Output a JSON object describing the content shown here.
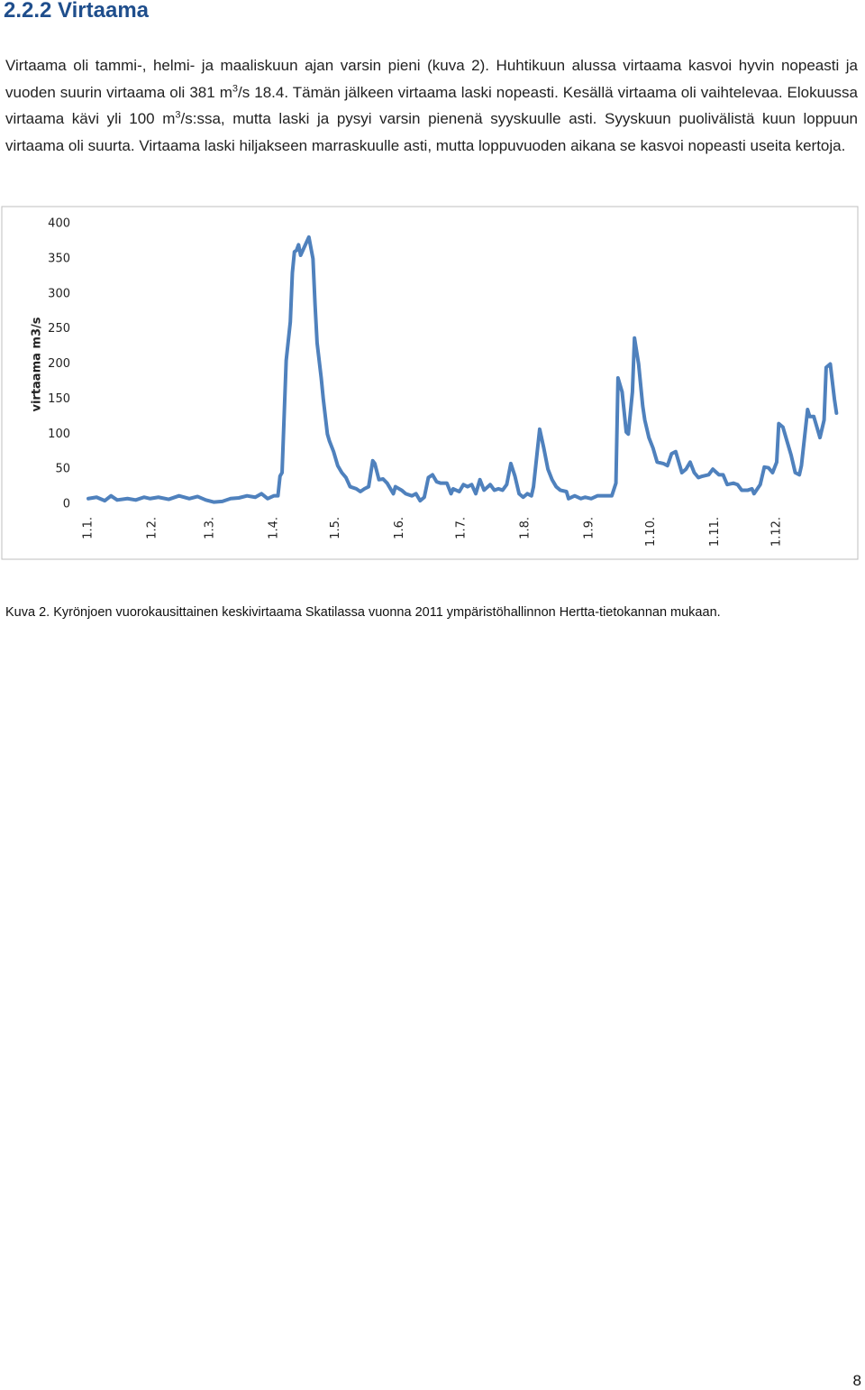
{
  "heading": "2.2.2 Virtaama",
  "paragraph": [
    "Virtaama oli tammi-, helmi- ja maaliskuun ajan varsin pieni (kuva 2). Huhtikuun alussa virtaama kasvoi hyvin nopeasti ja vuoden suurin virtaama oli 381 m",
    "3",
    "/s 18.4. Tämän jälkeen virtaama laski nopeasti. Kesällä virtaama oli vaihtelevaa. Elokuussa virtaama kävi yli 100 m",
    "3",
    "/s:ssa, mutta laski ja pysyi varsin pienenä syyskuulle asti. Syyskuun puolivälistä kuun loppuun virtaama oli suurta. Virtaama laski hiljakseen marraskuulle asti, mutta loppuvuoden aikana se kasvoi nopeasti useita kertoja."
  ],
  "chart_data": {
    "type": "line",
    "y_label": "virtaama m3/s",
    "x": [
      1,
      5,
      9,
      12,
      15,
      20,
      24,
      28,
      31,
      35,
      40,
      45,
      50,
      54,
      58,
      62,
      66,
      70,
      74,
      78,
      82,
      85,
      88,
      91,
      93,
      94,
      95,
      97,
      99,
      100,
      101,
      102,
      103,
      104,
      108,
      110,
      111,
      112,
      114,
      115,
      117,
      118,
      120,
      122,
      123,
      124,
      126,
      128,
      131,
      133,
      135,
      137,
      139,
      140,
      142,
      144,
      146,
      149,
      150,
      153,
      155,
      158,
      160,
      162,
      164,
      166,
      168,
      170,
      172,
      175,
      177,
      178,
      181,
      183,
      185,
      187,
      189,
      191,
      193,
      196,
      198,
      200,
      202,
      204,
      206,
      208,
      210,
      212,
      214,
      216,
      217,
      219,
      220,
      222,
      224,
      226,
      228,
      230,
      233,
      234,
      237,
      240,
      242,
      245,
      248,
      251,
      253,
      255,
      257,
      258,
      260,
      262,
      263,
      265,
      266,
      268,
      270,
      271,
      273,
      275,
      277,
      280,
      282,
      284,
      286,
      289,
      291,
      293,
      295,
      297,
      299,
      302,
      304,
      307,
      309,
      311,
      314,
      316,
      318,
      321,
      323,
      324,
      327,
      329,
      331,
      333,
      335,
      336,
      338,
      340,
      342,
      344,
      346,
      347,
      350,
      351,
      353,
      356,
      358,
      359,
      361,
      363,
      364
    ],
    "values": [
      8,
      10,
      5,
      12,
      6,
      8,
      6,
      10,
      8,
      10,
      7,
      12,
      8,
      11,
      6,
      3,
      4,
      8,
      9,
      12,
      10,
      15,
      8,
      12,
      12,
      40,
      45,
      205,
      260,
      330,
      360,
      362,
      370,
      355,
      381,
      350,
      285,
      230,
      180,
      150,
      100,
      90,
      75,
      55,
      50,
      45,
      38,
      25,
      22,
      18,
      22,
      25,
      62,
      58,
      35,
      36,
      30,
      15,
      25,
      20,
      15,
      12,
      15,
      5,
      10,
      38,
      42,
      32,
      30,
      30,
      15,
      22,
      18,
      28,
      25,
      28,
      15,
      35,
      20,
      28,
      20,
      22,
      20,
      28,
      58,
      40,
      15,
      10,
      15,
      12,
      25,
      80,
      107,
      80,
      50,
      35,
      25,
      20,
      18,
      8,
      12,
      8,
      10,
      8,
      12,
      12,
      12,
      12,
      30,
      180,
      160,
      103,
      100,
      160,
      237,
      200,
      140,
      120,
      95,
      80,
      60,
      58,
      55,
      72,
      75,
      45,
      50,
      60,
      45,
      38,
      40,
      42,
      50,
      42,
      42,
      28,
      30,
      28,
      20,
      20,
      22,
      15,
      28,
      53,
      52,
      45,
      60,
      115,
      110,
      90,
      70,
      45,
      42,
      55,
      135,
      125,
      125,
      95,
      120,
      195,
      200,
      150,
      130
    ],
    "color": "#4f81bd",
    "xlim": [
      -4,
      366
    ],
    "xticks": [
      {
        "value": 1,
        "label": "1.1."
      },
      {
        "value": 32,
        "label": "1.2."
      },
      {
        "value": 60,
        "label": "1.3."
      },
      {
        "value": 91,
        "label": "1.4."
      },
      {
        "value": 121,
        "label": "1.5."
      },
      {
        "value": 152,
        "label": "1.6."
      },
      {
        "value": 182,
        "label": "1.7."
      },
      {
        "value": 213,
        "label": "1.8."
      },
      {
        "value": 244,
        "label": "1.9."
      },
      {
        "value": 274,
        "label": "1.10."
      },
      {
        "value": 305,
        "label": "1.11."
      },
      {
        "value": 335,
        "label": "1.12."
      }
    ],
    "ylim": [
      0,
      400
    ],
    "yticks": [
      0,
      50,
      100,
      150,
      200,
      250,
      300,
      350,
      400
    ]
  },
  "caption": "Kuva 2. Kyrönjoen vuorokausittainen keskivirtaama Skatilassa vuonna 2011 ympäristöhallinnon Hertta-tietokannan mukaan.",
  "page_number": "8"
}
